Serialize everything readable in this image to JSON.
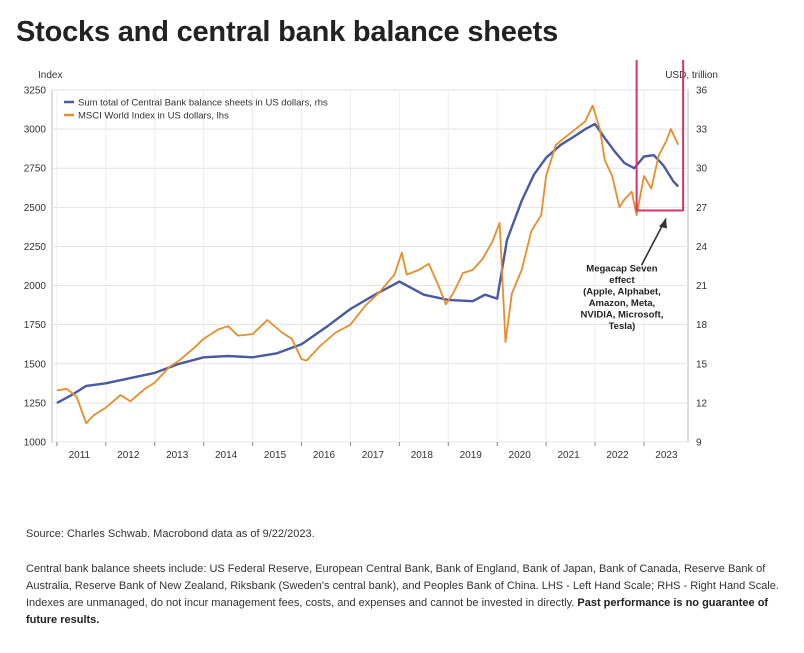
{
  "page": {
    "title": "Stocks and central bank balance sheets",
    "source": "Source: Charles Schwab. Macrobond data as of 9/22/2023.",
    "note": "Central bank balance sheets include: US Federal Reserve, European Central Bank, Bank of England, Bank of Japan, Bank of Canada, Reserve Bank of Australia, Reserve Bank of New Zealand, Riksbank (Sweden's central bank), and Peoples Bank of China. LHS - Left Hand Scale; RHS - Right Hand Scale. Indexes are unmanaged, do not incur management fees, costs, and expenses and cannot be invested in directly.",
    "note_bold": "Past performance is no guarantee of future results."
  },
  "chart_data": {
    "type": "line",
    "left_axis_unit": "Index",
    "right_axis_unit": "USD, trillion",
    "left_ylim": [
      1000,
      3250
    ],
    "right_ylim": [
      9,
      36
    ],
    "left_ticks": [
      1000,
      1250,
      1500,
      1750,
      2000,
      2250,
      2500,
      2750,
      3000,
      3250
    ],
    "right_ticks": [
      9,
      12,
      15,
      18,
      21,
      24,
      27,
      30,
      33,
      36
    ],
    "xlim": [
      2010.9,
      2023.9
    ],
    "x_ticks": [
      2011,
      2012,
      2013,
      2014,
      2015,
      2016,
      2017,
      2018,
      2019,
      2020,
      2021,
      2022,
      2023
    ],
    "grid": true,
    "legend_position": "top-left",
    "series": [
      {
        "name": "Sum total of Central Bank balance sheets in US dollars, rhs",
        "axis": "right",
        "color": "#4a5a9e",
        "x": [
          2011.0,
          2011.3,
          2011.6,
          2012.0,
          2012.5,
          2013.0,
          2013.5,
          2014.0,
          2014.5,
          2015.0,
          2015.5,
          2016.0,
          2016.5,
          2017.0,
          2017.5,
          2018.0,
          2018.5,
          2019.0,
          2019.5,
          2019.75,
          2020.0,
          2020.2,
          2020.5,
          2020.75,
          2021.0,
          2021.3,
          2021.6,
          2021.8,
          2022.0,
          2022.2,
          2022.4,
          2022.6,
          2022.8,
          2023.0,
          2023.2,
          2023.4,
          2023.6,
          2023.7
        ],
        "y": [
          12.0,
          12.6,
          13.3,
          13.5,
          13.9,
          14.3,
          15.0,
          15.5,
          15.6,
          15.5,
          15.8,
          16.5,
          17.8,
          19.2,
          20.3,
          21.3,
          20.3,
          19.9,
          19.8,
          20.3,
          20.0,
          24.5,
          27.5,
          29.5,
          30.8,
          31.8,
          32.5,
          33.0,
          33.4,
          32.3,
          31.3,
          30.4,
          30.0,
          30.9,
          31.0,
          30.2,
          29.0,
          28.6
        ]
      },
      {
        "name": "MSCI World Index in US dollars, lhs",
        "axis": "left",
        "color": "#e88d2a",
        "x": [
          2011.0,
          2011.2,
          2011.4,
          2011.6,
          2011.75,
          2012.0,
          2012.3,
          2012.5,
          2012.8,
          2013.0,
          2013.3,
          2013.5,
          2013.8,
          2014.0,
          2014.3,
          2014.5,
          2014.7,
          2015.0,
          2015.3,
          2015.6,
          2015.8,
          2016.0,
          2016.1,
          2016.4,
          2016.7,
          2017.0,
          2017.3,
          2017.6,
          2017.9,
          2018.05,
          2018.15,
          2018.4,
          2018.6,
          2018.8,
          2018.95,
          2019.1,
          2019.3,
          2019.5,
          2019.7,
          2019.9,
          2020.05,
          2020.17,
          2020.3,
          2020.5,
          2020.7,
          2020.9,
          2021.0,
          2021.2,
          2021.4,
          2021.6,
          2021.8,
          2021.95,
          2022.1,
          2022.2,
          2022.35,
          2022.5,
          2022.6,
          2022.75,
          2022.85,
          2023.0,
          2023.15,
          2023.3,
          2023.45,
          2023.55,
          2023.7
        ],
        "y": [
          1330,
          1340,
          1290,
          1120,
          1170,
          1220,
          1300,
          1260,
          1340,
          1380,
          1480,
          1520,
          1600,
          1660,
          1720,
          1740,
          1680,
          1690,
          1780,
          1700,
          1660,
          1530,
          1520,
          1620,
          1700,
          1750,
          1870,
          1960,
          2070,
          2210,
          2070,
          2100,
          2140,
          2000,
          1880,
          1950,
          2080,
          2100,
          2170,
          2280,
          2400,
          1640,
          1950,
          2100,
          2350,
          2450,
          2700,
          2900,
          2950,
          3000,
          3050,
          3150,
          3000,
          2800,
          2700,
          2500,
          2550,
          2600,
          2450,
          2700,
          2620,
          2830,
          2920,
          3000,
          2900
        ]
      }
    ],
    "annotation": {
      "text": "Megacap Seven effect (Apple, Alphabet, Amazon, Meta, NVIDIA, Microsoft, Tesla)",
      "lines": [
        "Megacap Seven",
        "effect",
        "(Apple, Alphabet,",
        "Amazon, Meta,",
        "NVIDIA, Microsoft,",
        "Tesla)"
      ],
      "highlight_color": "#d6336c",
      "highlight_x": [
        2022.85,
        2023.8
      ],
      "highlight_left_y": [
        2480,
        3490
      ]
    }
  }
}
